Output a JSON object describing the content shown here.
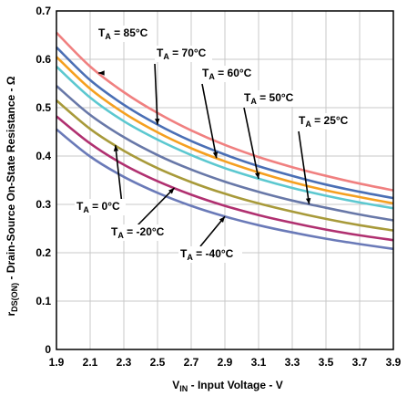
{
  "chart_data": {
    "type": "line",
    "xlabel_main": "V",
    "xlabel_sub": "IN",
    "xlabel_rest": " - Input Voltage - V",
    "ylabel_main": "r",
    "ylabel_sub": "DS(ON)",
    "ylabel_rest": " - Drain-Source On-State Resistance - Ω",
    "xlim": [
      1.9,
      3.9
    ],
    "ylim": [
      0,
      0.7
    ],
    "x_ticks": [
      "1.9",
      "2.1",
      "2.3",
      "2.5",
      "2.7",
      "2.9",
      "3.1",
      "3.3",
      "3.5",
      "3.7",
      "3.9"
    ],
    "y_ticks": [
      "0",
      "0.1",
      "0.2",
      "0.3",
      "0.4",
      "0.5",
      "0.6",
      "0.7"
    ],
    "grid": true,
    "x": [
      1.9,
      2.1,
      2.3,
      2.5,
      2.7,
      2.9,
      3.1,
      3.3,
      3.5,
      3.7,
      3.9
    ],
    "series": [
      {
        "name": "85°C",
        "label_main": "T",
        "label_sub": "A",
        "label_rest": " = 85°C",
        "color": "#f08080",
        "values": [
          0.655,
          0.585,
          0.532,
          0.489,
          0.453,
          0.423,
          0.398,
          0.377,
          0.359,
          0.343,
          0.329
        ]
      },
      {
        "name": "70°C",
        "label_main": "T",
        "label_sub": "A",
        "label_rest": " = 70°C",
        "color": "#4a6fb5",
        "values": [
          0.625,
          0.557,
          0.506,
          0.465,
          0.431,
          0.403,
          0.379,
          0.359,
          0.341,
          0.326,
          0.313
        ]
      },
      {
        "name": "60°C",
        "label_main": "T",
        "label_sub": "A",
        "label_rest": " = 60°C",
        "color": "#f5a020",
        "values": [
          0.605,
          0.539,
          0.489,
          0.449,
          0.416,
          0.389,
          0.366,
          0.346,
          0.329,
          0.315,
          0.302
        ]
      },
      {
        "name": "50°C",
        "label_main": "T",
        "label_sub": "A",
        "label_rest": " = 50°C",
        "color": "#5cc8d0",
        "values": [
          0.585,
          0.521,
          0.472,
          0.434,
          0.402,
          0.375,
          0.353,
          0.334,
          0.318,
          0.304,
          0.292
        ]
      },
      {
        "name": "25°C",
        "label_main": "T",
        "label_sub": "A",
        "label_rest": " = 25°C",
        "color": "#6878a8",
        "values": [
          0.545,
          0.485,
          0.439,
          0.402,
          0.372,
          0.347,
          0.326,
          0.308,
          0.293,
          0.279,
          0.267
        ]
      },
      {
        "name": "0°C",
        "label_main": "T",
        "label_sub": "A",
        "label_rest": " = 0°C",
        "color": "#a89a3a",
        "values": [
          0.515,
          0.456,
          0.411,
          0.375,
          0.346,
          0.322,
          0.302,
          0.285,
          0.27,
          0.257,
          0.246
        ]
      },
      {
        "name": "-20°C",
        "label_main": "T",
        "label_sub": "A",
        "label_rest": " = -20°C",
        "color": "#b03070",
        "values": [
          0.482,
          0.426,
          0.382,
          0.348,
          0.32,
          0.297,
          0.278,
          0.262,
          0.248,
          0.236,
          0.226
        ]
      },
      {
        "name": "-40°C",
        "label_main": "T",
        "label_sub": "A",
        "label_rest": " = -40°C",
        "color": "#6a7ab8",
        "values": [
          0.455,
          0.399,
          0.357,
          0.324,
          0.297,
          0.275,
          0.257,
          0.242,
          0.229,
          0.218,
          0.208
        ]
      }
    ]
  }
}
